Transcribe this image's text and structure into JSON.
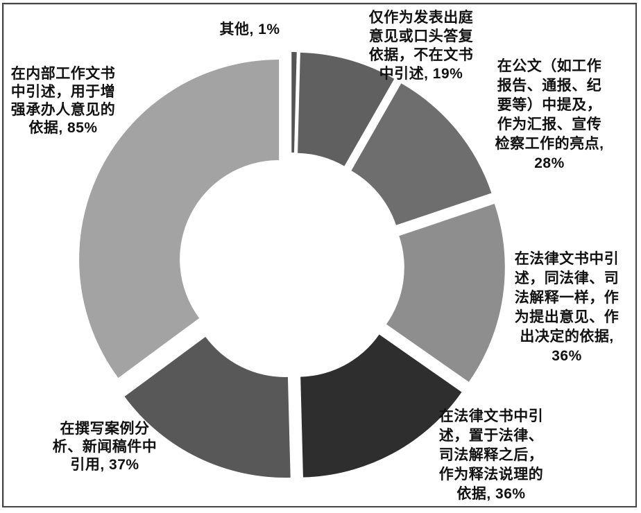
{
  "figure": {
    "description": "Exploded doughnut chart, grayscale, with data labels only (no title, no legend, no axes)",
    "background_color": "#ffffff",
    "border_color": "#454545"
  },
  "chart_data": {
    "type": "pie",
    "subtype": "exploded_doughnut",
    "title": "",
    "legend_position": "none",
    "value_unit": "percent (multi-select survey; slice angles proportional to values, total = 242)",
    "slices": [
      {
        "name": "其他",
        "value": 1,
        "label_text": "其他, 1%",
        "color": "#555555"
      },
      {
        "name": "仅作为发表出庭意见或口头答复依据，不在文书中引述",
        "value": 19,
        "label_text": "仅作为发表出庭\n意见或口头答复\n依据，不在文书\n中引述, 19%",
        "color": "#606060"
      },
      {
        "name": "在公文（如工作报告、通报、纪要等）中提及，作为汇报、宣传检察工作的亮点",
        "value": 28,
        "label_text": "在公文（如工作\n报告、通报、纪\n要等）中提及，\n作为汇报、宣传\n检察工作的亮点,\n28%",
        "color": "#6e6e6e"
      },
      {
        "name": "在法律文书中引述，同法律、司法解释一样，作为提出意见、作出决定的依据",
        "value": 36,
        "label_text": "在法律文书中引\n述，同法律、司\n法解释一样，作\n为提出意见、作\n出决定的依据,\n36%",
        "color": "#8e8e8e"
      },
      {
        "name": "在法律文书中引述，置于法律、司法解释之后，作为释法说理的依据",
        "value": 36,
        "label_text": "在法律文书中引\n述，置于法律、\n司法解释之后，\n作为释法说理的\n依据, 36%",
        "color": "#2e2e2e"
      },
      {
        "name": "在撰写案例分析、新闻稿件中引用",
        "value": 37,
        "label_text": "在撰写案例分\n析、新闻稿件中\n引用, 37%",
        "color": "#585858"
      },
      {
        "name": "在内部工作文书中引述，用于增强承办人意见的依据",
        "value": 85,
        "label_text": "在内部工作文书\n中引述，用于增\n强承办人意见的\n依据, 85%",
        "color": "#a3a3a3"
      }
    ]
  }
}
